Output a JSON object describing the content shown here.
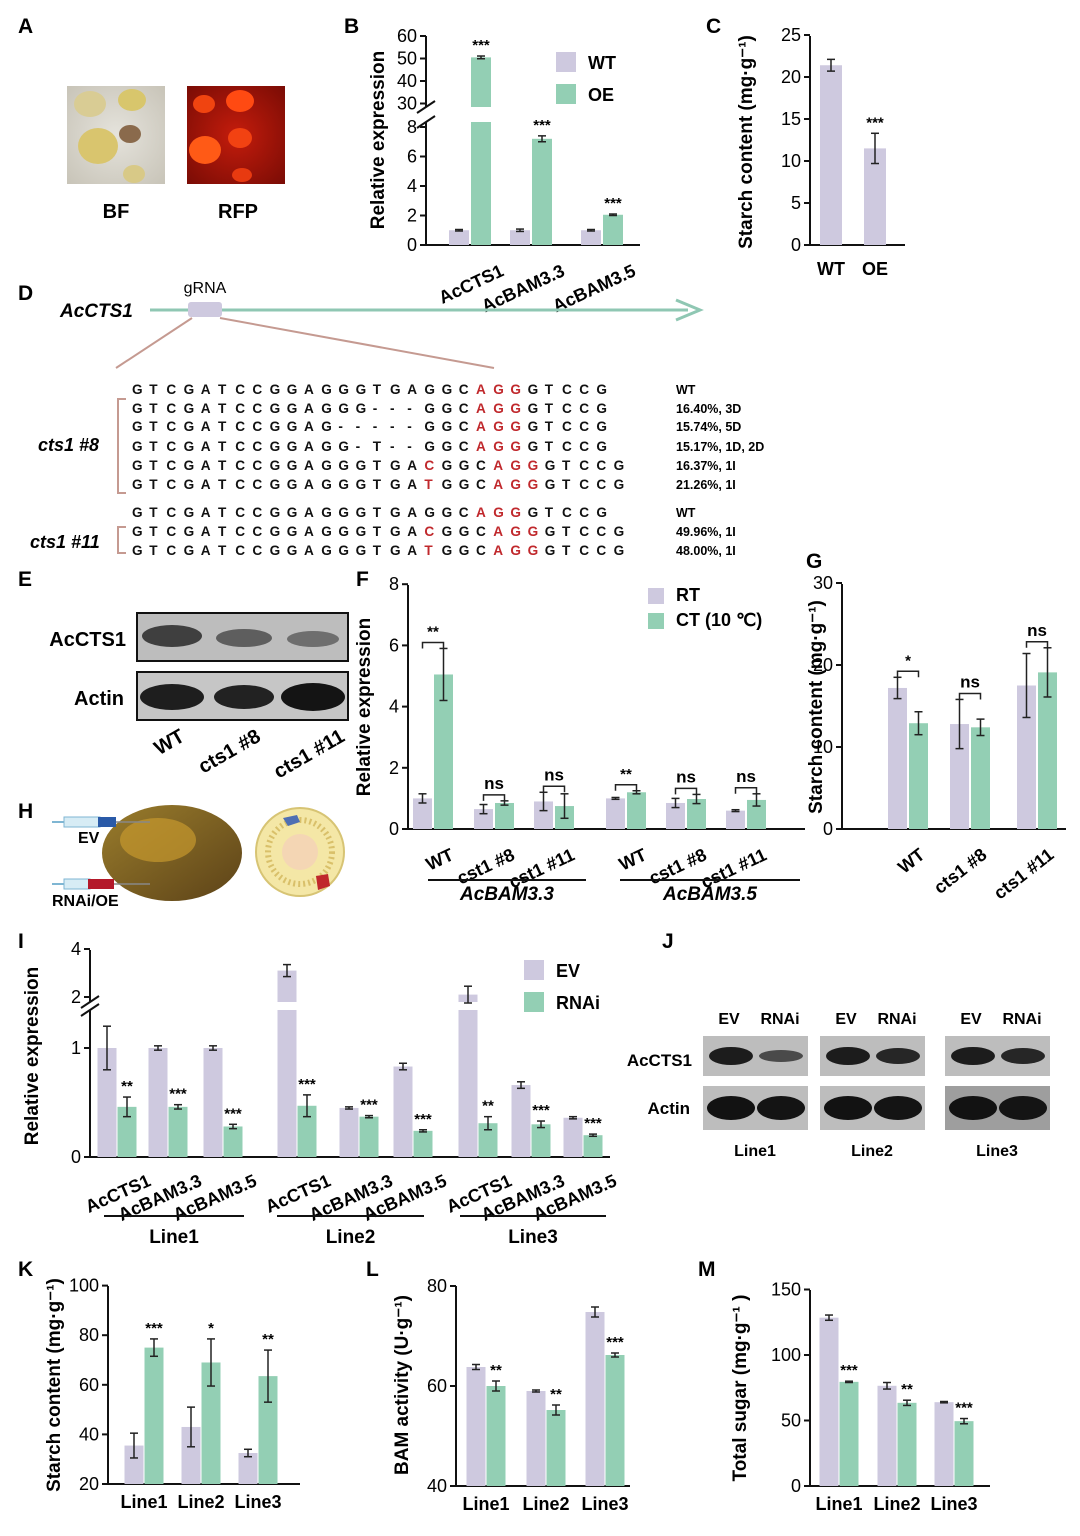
{
  "colors": {
    "wt": "#cec9df",
    "oe": "#93cfb4",
    "axis": "#111111",
    "mut": "#c0282c",
    "arrow": "#8fc7b3",
    "zoom": "#c59a91"
  },
  "panels": {
    "A": "A",
    "B": "B",
    "C": "C",
    "D": "D",
    "E": "E",
    "F": "F",
    "G": "G",
    "H": "H",
    "I": "I",
    "J": "J",
    "K": "K",
    "L": "L",
    "M": "M"
  },
  "panelA": {
    "bf": "BF",
    "rfp": "RFP"
  },
  "panelD": {
    "gene": "AcCTS1",
    "grna": "gRNA",
    "group1": "cts1 #8",
    "group2": "cts1 #11",
    "rows": [
      {
        "seq": "GTCGATCCGGAGGGTGAGGCAGGGTCCG",
        "mut": [],
        "label": "WT"
      },
      {
        "seq": "GTCGATCCGGAGGG---GGCAGGGTCCG",
        "mut": [],
        "label": "16.40%, 3D"
      },
      {
        "seq": "GTCGATCCGGAG-----GGCAGGGTCCG",
        "mut": [],
        "label": "15.74%, 5D"
      },
      {
        "seq": "GTCGATCCGGAGG-T--GGCAGGGTCCG",
        "mut": [],
        "label": "15.17%, 1D, 2D"
      },
      {
        "seq": "GTCGATCCGGAGGGTGACGGCAGGGTCCG",
        "mut": [
          17
        ],
        "label": "16.37%, 1I"
      },
      {
        "seq": "GTCGATCCGGAGGGTGATGGCAGGGTCCG",
        "mut": [
          17
        ],
        "label": "21.26%, 1I"
      },
      {
        "seq": "GTCGATCCGGAGGGTGAGGCAGGGTCCG",
        "mut": [],
        "label": "WT"
      },
      {
        "seq": "GTCGATCCGGAGGGTGACGGCAGGGTCCG",
        "mut": [
          17
        ],
        "label": "49.96%, 1I"
      },
      {
        "seq": "GTCGATCCGGAGGGTGATGGCAGGGTCCG",
        "mut": [
          17
        ],
        "label": "48.00%, 1I"
      }
    ]
  },
  "panelE": {
    "rows": [
      "AcCTS1",
      "Actin"
    ],
    "lanes": [
      "WT",
      "cts1 #8",
      "cts1 #11"
    ]
  },
  "panelH": {
    "ev": "EV",
    "rnai": "RNAi/OE"
  },
  "panelJ": {
    "lanes": [
      "EV",
      "RNAi"
    ],
    "rows": [
      "AcCTS1",
      "Actin"
    ],
    "lines": [
      "Line1",
      "Line2",
      "Line3"
    ]
  },
  "chart_data": [
    {
      "id": "B",
      "type": "bar",
      "ylabel": "Relative expression",
      "categories": [
        "AcCTS1",
        "AcBAM3.3",
        "AcBAM3.5"
      ],
      "axis_break": {
        "lower": [
          0,
          8
        ],
        "upper": [
          30,
          60
        ]
      },
      "yticks": [
        "0",
        "2",
        "4",
        "6",
        "8",
        "30",
        "40",
        "50",
        "60"
      ],
      "series": [
        {
          "name": "WT",
          "values": [
            1.0,
            1.0,
            1.0
          ],
          "err": [
            0.05,
            0.08,
            0.05
          ]
        },
        {
          "name": "OE",
          "values": [
            50.5,
            7.2,
            2.05
          ],
          "err": [
            0.6,
            0.2,
            0.05
          ]
        }
      ],
      "significance": [
        "***",
        "***",
        "***"
      ]
    },
    {
      "id": "C",
      "type": "bar",
      "ylabel": "Starch content (mg·g⁻¹)",
      "categories": [
        "WT",
        "OE"
      ],
      "ylim": [
        0,
        25
      ],
      "yticks": [
        "0",
        "5",
        "10",
        "15",
        "20",
        "25"
      ],
      "values": [
        21.4,
        11.5
      ],
      "err": [
        0.7,
        1.8
      ],
      "significance": [
        "",
        "***"
      ]
    },
    {
      "id": "F",
      "type": "bar",
      "ylabel": "Relative expression",
      "ylim": [
        0,
        8
      ],
      "yticks": [
        "0",
        "2",
        "4",
        "6",
        "8"
      ],
      "categories": [
        "WT",
        "cst1 #8",
        "cst1 #11",
        "WT",
        "cst1 #8",
        "cst1 #11"
      ],
      "groups": [
        "AcBAM3.3",
        "AcBAM3.5"
      ],
      "series": [
        {
          "name": "RT",
          "values": [
            1.0,
            0.65,
            0.9,
            1.0,
            0.85,
            0.6
          ],
          "err": [
            0.15,
            0.15,
            0.3,
            0.03,
            0.15,
            0.03
          ]
        },
        {
          "name": "CT (10 ℃)",
          "values": [
            5.05,
            0.85,
            0.75,
            1.2,
            0.98,
            0.95
          ],
          "err": [
            0.85,
            0.07,
            0.4,
            0.05,
            0.15,
            0.2
          ]
        }
      ],
      "significance": [
        "**",
        "ns",
        "ns",
        "**",
        "ns",
        "ns"
      ]
    },
    {
      "id": "G",
      "type": "bar",
      "ylabel": "Starch content (mg·g⁻¹)",
      "ylim": [
        0,
        30
      ],
      "yticks": [
        "0",
        "10",
        "20",
        "30"
      ],
      "categories": [
        "WT",
        "cts1 #8",
        "cts1 #11"
      ],
      "series": [
        {
          "name": "RT",
          "values": [
            17.2,
            12.8,
            17.5
          ],
          "err": [
            1.3,
            3.0,
            3.9
          ]
        },
        {
          "name": "CT",
          "values": [
            12.9,
            12.4,
            19.1
          ],
          "err": [
            1.4,
            1.0,
            3.0
          ]
        }
      ],
      "significance": [
        "*",
        "ns",
        "ns"
      ]
    },
    {
      "id": "I",
      "type": "bar",
      "ylabel": "Relative expression",
      "axis_break": {
        "lower": [
          0,
          1.4
        ],
        "upper": [
          1.8,
          4
        ]
      },
      "yticks": [
        "0",
        "1",
        "2",
        "4"
      ],
      "categories": [
        "AcCTS1",
        "AcBAM3.3",
        "AcBAM3.5",
        "AcCTS1",
        "AcBAM3.3",
        "AcBAM3.5",
        "AcCTS1",
        "AcBAM3.3",
        "AcBAM3.5"
      ],
      "groups": [
        "Line1",
        "Line2",
        "Line3"
      ],
      "series": [
        {
          "name": "EV",
          "values": [
            1.0,
            1.0,
            1.0,
            3.1,
            0.45,
            0.83,
            2.1,
            0.66,
            0.36
          ],
          "err": [
            0.2,
            0.02,
            0.02,
            0.25,
            0.01,
            0.03,
            0.35,
            0.03,
            0.01
          ]
        },
        {
          "name": "RNAi",
          "values": [
            0.46,
            0.46,
            0.28,
            0.47,
            0.37,
            0.24,
            0.31,
            0.3,
            0.2
          ],
          "err": [
            0.09,
            0.02,
            0.02,
            0.1,
            0.01,
            0.01,
            0.06,
            0.03,
            0.01
          ]
        }
      ],
      "significance": [
        "**",
        "***",
        "***",
        "***",
        "***",
        "***",
        "**",
        "***",
        "***"
      ]
    },
    {
      "id": "K",
      "type": "bar",
      "ylabel": "Starch content (mg·g⁻¹)",
      "ylim": [
        20,
        100
      ],
      "yticks": [
        "20",
        "40",
        "60",
        "80",
        "100"
      ],
      "categories": [
        "Line1",
        "Line2",
        "Line3"
      ],
      "series": [
        {
          "name": "EV",
          "values": [
            35.5,
            43.0,
            32.5
          ],
          "err": [
            5.0,
            8.0,
            1.5
          ]
        },
        {
          "name": "RNAi",
          "values": [
            75.0,
            69.0,
            63.5
          ],
          "err": [
            3.5,
            9.5,
            10.5
          ]
        }
      ],
      "significance": [
        "***",
        "*",
        "**"
      ]
    },
    {
      "id": "L",
      "type": "bar",
      "ylabel": "BAM  activity (U·g⁻¹)",
      "ylim": [
        40,
        80
      ],
      "yticks": [
        "40",
        "60",
        "80"
      ],
      "categories": [
        "Line1",
        "Line2",
        "Line3"
      ],
      "series": [
        {
          "name": "EV",
          "values": [
            63.8,
            59.0,
            74.8
          ],
          "err": [
            0.5,
            0.2,
            1.0
          ]
        },
        {
          "name": "RNAi",
          "values": [
            60.0,
            55.2,
            66.2
          ],
          "err": [
            1.0,
            1.0,
            0.4
          ]
        }
      ],
      "significance": [
        "**",
        "**",
        "***"
      ]
    },
    {
      "id": "M",
      "type": "bar",
      "ylabel": "Total sugar  (mg·g⁻¹ )",
      "ylim": [
        0,
        150
      ],
      "yticks": [
        "0",
        "50",
        "100",
        "150"
      ],
      "categories": [
        "Line1",
        "Line2",
        "Line3"
      ],
      "series": [
        {
          "name": "EV",
          "values": [
            128.5,
            76.5,
            64.0
          ],
          "err": [
            2.0,
            2.5,
            0.5
          ]
        },
        {
          "name": "RNAi",
          "values": [
            79.5,
            63.5,
            49.5
          ],
          "err": [
            0.5,
            2.0,
            2.0
          ]
        }
      ],
      "significance": [
        "***",
        "**",
        "***"
      ]
    }
  ]
}
